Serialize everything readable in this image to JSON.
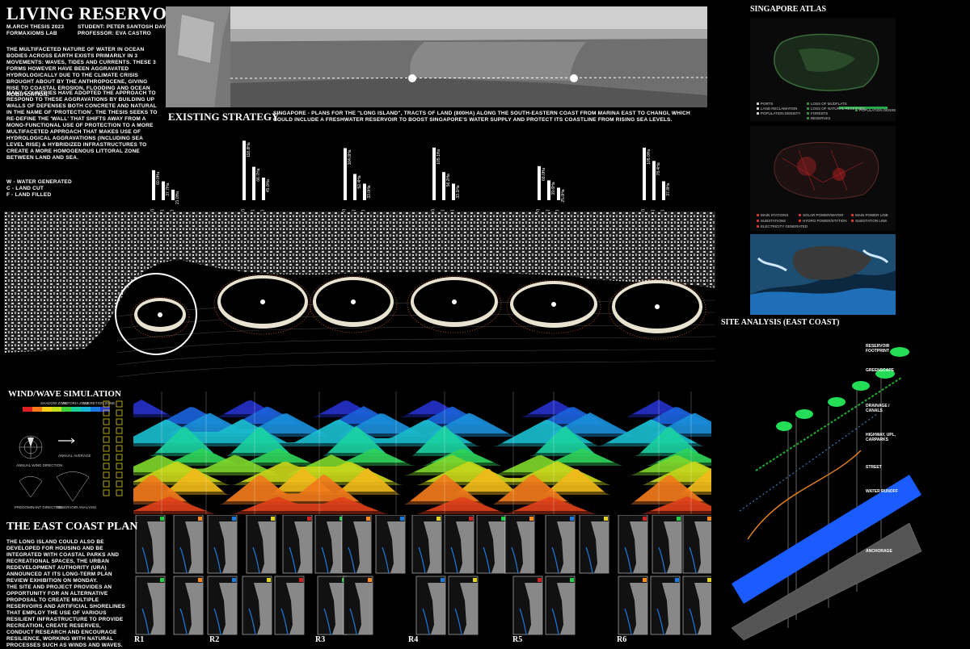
{
  "header": {
    "title": "LIVING RESERVOIRS",
    "meta_left": [
      "M.ARCH THESIS 2023",
      "FORMAXIOMS LAB"
    ],
    "meta_right": [
      "STUDENT: PETER SANTOSH DAVID",
      "PROFESSOR: EVA CASTRO"
    ]
  },
  "intro": {
    "p1": "THE MULTIFACETED NATURE OF WATER IN OCEAN BODIES ACROSS EARTH EXISTS PRIMARILY IN 3 MOVEMENTS: WAVES, TIDES AND CURRENTS. THESE 3 FORMS HOWEVER HAVE BEEN AGGRAVATED HYDROLOGICALLY DUE TO THE CLIMATE CRISIS BROUGHT ABOUT BY THE ANTHROPOCENE, GIVING RISE TO COASTAL EROSION, FLOODING AND OCEAN ACIDIFICATION.",
    "p2": "MANY COUNTRIES HAVE ADOPTED THE APPROACH TO RESPOND TO THESE AGGRAVATIONS BY BUILDING UP WALLS OF DEFENSES BOTH CONCRETE AND NATURAL IN THE NAME OF 'PROTECTION'. THE THESIS SEEKS TO RE-DEFINE THE 'WALL' THAT SHIFTS AWAY FROM A MONO-FUNCTIONAL USE OF PROTECTION TO A MORE MULTIFACETED APPROACH THAT MAKES USE OF HYDROLOGICAL AGGRAVATIONS (INCLUDING SEA LEVEL RISE) & HYBRIDIZED INFRASTRUCTURES TO CREATE A MORE HOMOGENOUS LITTORAL ZONE BETWEEN LAND AND SEA."
  },
  "legend": [
    "W - WATER GENERATED",
    "C - LAND CUT",
    "F - LAND FILLED"
  ],
  "existing": {
    "title": "EXISTING STRATEGY",
    "text": "SINGAPORE - PLANS FOR THE \"LONG ISLAND\", TRACTS OF LAND (800HA) ALONG THE SOUTH-EASTERN COAST FROM MARINA EAST TO CHANGI, WHICH COULD INCLUDE A FRESHWATER RESERVOIR TO BOOST SINGAPORE'S WATER SUPPLY AND PROTECT ITS COASTLINE FROM RISING SEA LEVELS."
  },
  "bar_groups": [
    {
      "labels": [
        "(W)",
        "(C)",
        "(F)"
      ],
      "values": [
        "60.0Ha",
        "37.7Ha",
        "21.0Ha"
      ]
    },
    {
      "labels": [
        "(W)",
        "(C)",
        "(F)"
      ],
      "values": [
        "118.8Ha",
        "66.7Ha",
        "45.0Ha"
      ]
    },
    {
      "labels": [
        "(W)",
        "(C)",
        "(F)"
      ],
      "values": [
        "104.0Ha",
        "52.4Ha",
        "33.0Ha"
      ]
    },
    {
      "labels": [
        "(W)",
        "(C)",
        "(F)"
      ],
      "values": [
        "105.1Ha",
        "56.2Ha",
        "33.1Ha"
      ]
    },
    {
      "labels": [
        "(W)",
        "(C)",
        "(F)"
      ],
      "values": [
        "68.0Ha",
        "39.6Ha",
        "25.0Ha"
      ]
    },
    {
      "labels": [
        "(W)",
        "(C)",
        "(F)"
      ],
      "values": [
        "105.0Ha",
        "78.4Ha",
        "37.8Ha"
      ]
    }
  ],
  "atlas": {
    "title": "SINGAPORE ATLAS",
    "panel1_legend": [
      "PORTS",
      "LAND RECLAMATION",
      "POPULATION DENSITY",
      "LOSS OF MUDFLATS",
      "LOSS OF NATURAL RESERVES",
      "FORESTS",
      "RESERVES",
      "POPULATION DENSE"
    ],
    "panel2_legend": [
      "MAIN STATIONS",
      "SUBSTATIONS",
      "ELECTRICITY GENERATED",
      "SOLAR POWER/WATER",
      "HYDRO POWER/STATION",
      "MAIN POWER LINE",
      "SUBSTATION LINE"
    ]
  },
  "site_analysis": {
    "title": "SITE ANALYSIS (EAST COAST)",
    "layers": [
      "RESERVOIR FOOTPRINT",
      "GREENSCAPE",
      "DRAINAGE / CANALS",
      "HIGHWAY, UPL, CARPARKS",
      "STREET",
      "WATER RUNOFF",
      "ANCHORAGE"
    ]
  },
  "wind": {
    "title": "WIND/WAVE SIMULATION",
    "scale_labels": [
      "SHADOW ZONE",
      "VICTORIA ZONE",
      "ACCRETION ZONE"
    ],
    "rose_labels": [
      "ANNUAL WIND DIRECTION",
      "ANNUAL AVERAGE",
      "PREDOMINANT DIRECTION",
      "RESERVOIR ANALYSIS"
    ]
  },
  "east_coast_plan": {
    "title": "THE EAST COAST PLAN",
    "p1": "THE LONG ISLAND COULD ALSO BE DEVELOPED FOR HOUSING AND BE INTEGRATED WITH COASTAL PARKS AND RECREATIONAL SPACES, THE URBAN REDEVELOPMENT AUTHORITY (URA) ANNOUNCED AT ITS LONG-TERM PLAN REVIEW EXHIBITION ON MONDAY.",
    "p2": "THE SITE AND PROJECT PROVIDES AN OPPORTUNITY FOR AN ALTERNATIVE PROPOSAL TO CREATE MULTIPLE RESERVOIRS AND ARTIFICIAL SHORELINES THAT EMPLOY THE USE OF VARIOUS RESILIENT INFRASTRUCTURE TO PROVIDE RECREATION, CREATE RESERVES, CONDUCT RESEARCH AND ENCOURAGE RESILIENCE, WORKING WITH NATURAL PROCESSES SUCH AS WINDS AND WAVES."
  },
  "reservoir_labels": [
    "R1",
    "R2",
    "R3",
    "R4",
    "R5",
    "R6"
  ],
  "colors": {
    "background": "#000000",
    "reservoir_edge": "#e8e2d0",
    "highlight_green": "#22dd44",
    "runoff_blue": "#1a5cff"
  }
}
